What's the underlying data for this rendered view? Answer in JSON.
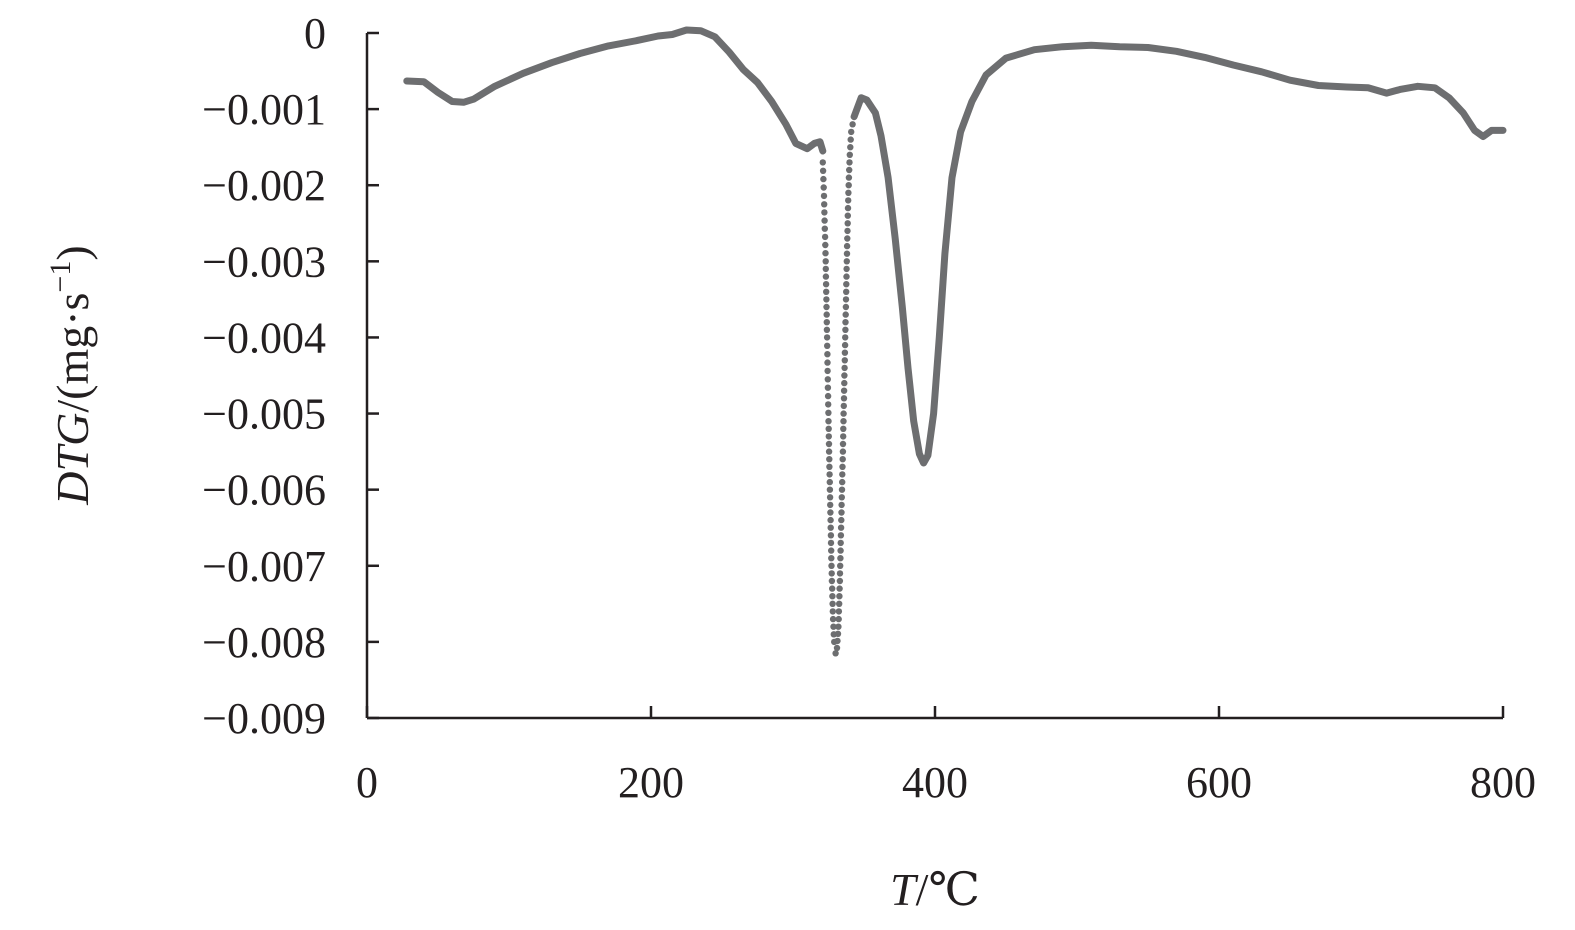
{
  "chart_data": {
    "type": "line",
    "xlabel_main": "T",
    "xlabel_unit": "/℃",
    "ylabel_main": "DTG",
    "ylabel_unit_pre": "/(mg·s",
    "ylabel_unit_sup": "−1",
    "ylabel_unit_post": ")",
    "xlim": [
      0,
      800
    ],
    "ylim": [
      -0.009,
      0
    ],
    "x_ticks": [
      {
        "value": 0,
        "label": "0"
      },
      {
        "value": 200,
        "label": "200"
      },
      {
        "value": 400,
        "label": "400"
      },
      {
        "value": 600,
        "label": "600"
      },
      {
        "value": 800,
        "label": "800"
      }
    ],
    "y_ticks": [
      {
        "value": 0,
        "label": "0"
      },
      {
        "value": -0.001,
        "label": "−0.001"
      },
      {
        "value": -0.002,
        "label": "−0.002"
      },
      {
        "value": -0.003,
        "label": "−0.003"
      },
      {
        "value": -0.004,
        "label": "−0.004"
      },
      {
        "value": -0.005,
        "label": "−0.005"
      },
      {
        "value": -0.006,
        "label": "−0.006"
      },
      {
        "value": -0.007,
        "label": "−0.007"
      },
      {
        "value": -0.008,
        "label": "−0.008"
      },
      {
        "value": -0.009,
        "label": "−0.009"
      }
    ],
    "grid": false,
    "color": "#6d6e70",
    "series": [
      {
        "segments": [
          [
            [
              28,
              -0.00063
            ],
            [
              40,
              -0.00064
            ],
            [
              50,
              -0.00078
            ],
            [
              60,
              -0.0009
            ],
            [
              68,
              -0.00091
            ],
            [
              75,
              -0.00087
            ],
            [
              90,
              -0.0007
            ],
            [
              110,
              -0.00053
            ],
            [
              130,
              -0.00039
            ],
            [
              150,
              -0.00027
            ],
            [
              170,
              -0.00017
            ],
            [
              190,
              -0.0001
            ],
            [
              205,
              -4e-05
            ],
            [
              215,
              -2e-05
            ],
            [
              225,
              4e-05
            ],
            [
              235,
              3e-05
            ],
            [
              245,
              -5e-05
            ],
            [
              255,
              -0.00025
            ],
            [
              265,
              -0.00048
            ],
            [
              275,
              -0.00065
            ],
            [
              285,
              -0.0009
            ],
            [
              295,
              -0.0012
            ],
            [
              302,
              -0.00145
            ],
            [
              310,
              -0.00152
            ],
            [
              315,
              -0.00145
            ],
            [
              319,
              -0.00143
            ],
            [
              321,
              -0.00155
            ]
          ],
          [
            [
              343,
              -0.0011
            ],
            [
              348,
              -0.00085
            ],
            [
              352,
              -0.00088
            ],
            [
              358,
              -0.00105
            ],
            [
              362,
              -0.00135
            ],
            [
              367,
              -0.0019
            ],
            [
              372,
              -0.0027
            ],
            [
              377,
              -0.0036
            ],
            [
              381,
              -0.0044
            ],
            [
              385,
              -0.0051
            ],
            [
              389,
              -0.00553
            ],
            [
              392,
              -0.00565
            ],
            [
              395,
              -0.00555
            ],
            [
              399,
              -0.005
            ],
            [
              403,
              -0.004
            ],
            [
              407,
              -0.0029
            ],
            [
              412,
              -0.0019
            ],
            [
              418,
              -0.0013
            ],
            [
              426,
              -0.0009
            ],
            [
              436,
              -0.00055
            ],
            [
              450,
              -0.00033
            ],
            [
              470,
              -0.00022
            ],
            [
              490,
              -0.00018
            ],
            [
              510,
              -0.00016
            ],
            [
              530,
              -0.00018
            ],
            [
              550,
              -0.00019
            ],
            [
              570,
              -0.00024
            ],
            [
              590,
              -0.00032
            ],
            [
              610,
              -0.00042
            ],
            [
              630,
              -0.00051
            ],
            [
              650,
              -0.00062
            ],
            [
              670,
              -0.00069
            ],
            [
              690,
              -0.00071
            ],
            [
              705,
              -0.00072
            ],
            [
              718,
              -0.00079
            ],
            [
              728,
              -0.00074
            ],
            [
              740,
              -0.0007
            ],
            [
              752,
              -0.00072
            ],
            [
              762,
              -0.00085
            ],
            [
              772,
              -0.00105
            ],
            [
              780,
              -0.00128
            ],
            [
              786,
              -0.00136
            ],
            [
              792,
              -0.00128
            ],
            [
              800,
              -0.00128
            ]
          ]
        ],
        "dotted": [
          [
            321,
            -0.0017
          ],
          [
            322,
            -0.00225
          ],
          [
            323,
            -0.003
          ],
          [
            324,
            -0.004
          ],
          [
            325,
            -0.0051
          ],
          [
            326,
            -0.006
          ],
          [
            327,
            -0.0069
          ],
          [
            328,
            -0.0076
          ],
          [
            329,
            -0.008
          ],
          [
            330,
            -0.00815
          ],
          [
            331,
            -0.00808
          ],
          [
            332,
            -0.0078
          ],
          [
            333,
            -0.0072
          ],
          [
            334,
            -0.0064
          ],
          [
            335,
            -0.0056
          ],
          [
            336,
            -0.0047
          ],
          [
            337,
            -0.0038
          ],
          [
            338,
            -0.0029
          ],
          [
            339,
            -0.0021
          ],
          [
            340,
            -0.0016
          ],
          [
            341,
            -0.0013
          ],
          [
            343,
            -0.0011
          ]
        ]
      }
    ]
  }
}
